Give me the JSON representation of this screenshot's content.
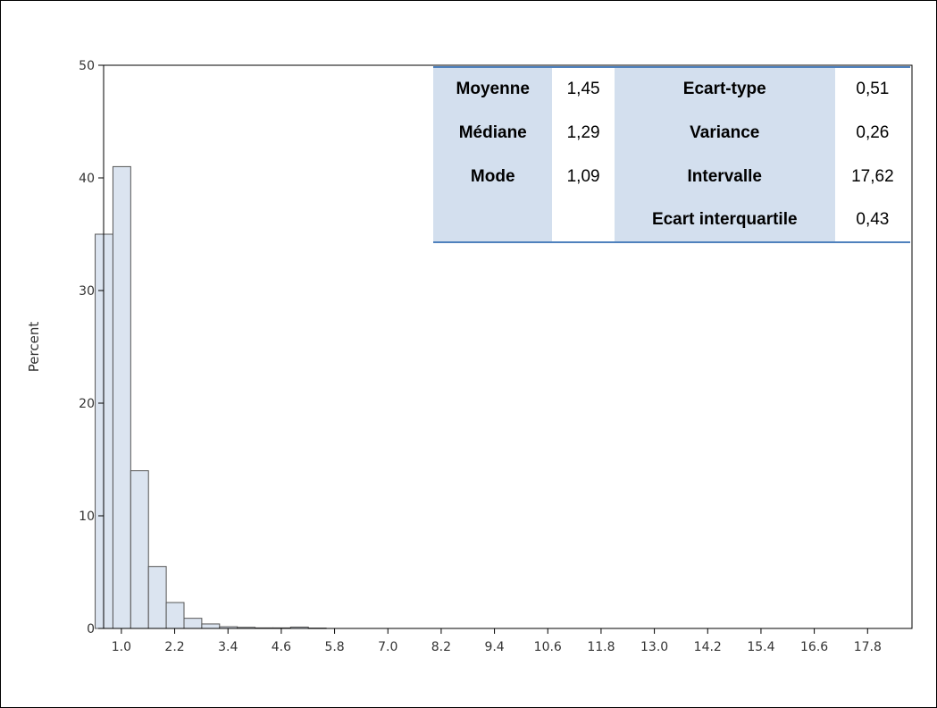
{
  "chart_data": {
    "type": "bar",
    "subtype": "histogram",
    "ylabel": "Percent",
    "xlabel": "",
    "ylim": [
      0,
      50
    ],
    "xlim": [
      0.6,
      18.8
    ],
    "yticks": [
      "0",
      "10",
      "20",
      "30",
      "40",
      "50"
    ],
    "xticks": [
      "1.0",
      "2.2",
      "3.4",
      "4.6",
      "5.8",
      "7.0",
      "8.2",
      "9.4",
      "10.6",
      "11.8",
      "13.0",
      "14.2",
      "15.4",
      "16.6",
      "17.8"
    ],
    "bin_width": 0.4,
    "bin_centers": [
      0.6,
      1.0,
      1.4,
      1.8,
      2.2,
      2.6,
      3.0,
      3.4,
      3.8,
      4.2,
      4.6,
      5.0,
      5.4
    ],
    "values": [
      35,
      41,
      14,
      5.5,
      2.3,
      0.9,
      0.4,
      0.15,
      0.1,
      0.05,
      0.05,
      0.12,
      0.03
    ],
    "colors": {
      "bar_fill": "#dbe4f0",
      "bar_stroke": "#555555",
      "axis": "#000000"
    }
  },
  "stats_table": {
    "rows": [
      {
        "label1": "Moyenne",
        "value1": "1,45",
        "label2": "Ecart-type",
        "value2": "0,51"
      },
      {
        "label1": "Médiane",
        "value1": "1,29",
        "label2": "Variance",
        "value2": "0,26"
      },
      {
        "label1": "Mode",
        "value1": "1,09",
        "label2": "Intervalle",
        "value2": "17,62"
      },
      {
        "label1": "",
        "value1": "",
        "label2": "Ecart interquartile",
        "value2": "0,43"
      }
    ],
    "colors": {
      "label_bg": "#d3dfee",
      "border": "#4f81bd"
    }
  }
}
